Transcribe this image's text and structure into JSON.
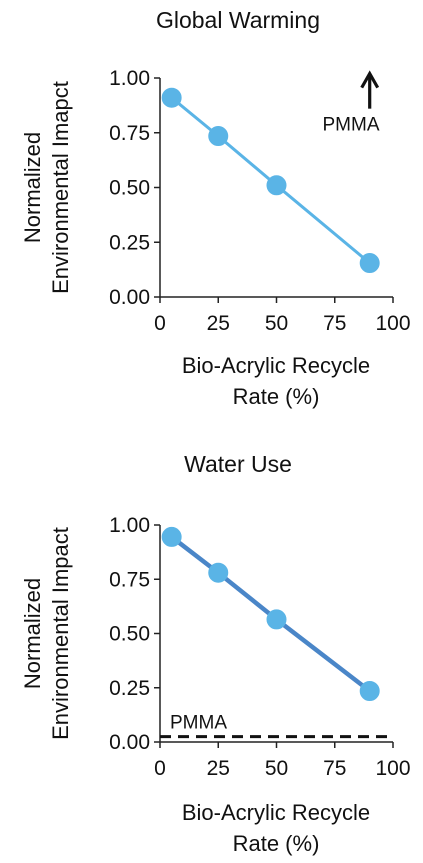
{
  "chart_data": [
    {
      "type": "line",
      "title": "Global Warming",
      "xlabel_lines": [
        "Bio-Acrylic Recycle",
        "Rate (%)"
      ],
      "ylabel_lines": [
        "Normalized",
        "Environmental Imapct"
      ],
      "xlim": [
        0,
        100
      ],
      "ylim": [
        0,
        1
      ],
      "xticks": [
        "0",
        "25",
        "50",
        "75",
        "100"
      ],
      "yticks": [
        "0.00",
        "0.25",
        "0.50",
        "0.75",
        "1.00"
      ],
      "xtick_values": [
        0,
        25,
        50,
        75,
        100
      ],
      "ytick_values": [
        0,
        0.25,
        0.5,
        0.75,
        1.0
      ],
      "grid": false,
      "series": [
        {
          "x": [
            5,
            25,
            50,
            90
          ],
          "y": [
            0.91,
            0.735,
            0.51,
            0.155
          ],
          "color": "#5ab4e6"
        }
      ],
      "reference": {
        "label": "PMMA",
        "kind": "arrow-up",
        "x": 90,
        "y_from": 0.86,
        "y_to": 1.02
      }
    },
    {
      "type": "line",
      "title": "Water Use",
      "xlabel_lines": [
        "Bio-Acrylic Recycle",
        "Rate (%)"
      ],
      "ylabel_lines": [
        "Normalized",
        "Environmental Impact"
      ],
      "xlim": [
        0,
        100
      ],
      "ylim": [
        0,
        1
      ],
      "xticks": [
        "0",
        "25",
        "50",
        "75",
        "100"
      ],
      "yticks": [
        "0.00",
        "0.25",
        "0.50",
        "0.75",
        "1.00"
      ],
      "xtick_values": [
        0,
        25,
        50,
        75,
        100
      ],
      "ytick_values": [
        0,
        0.25,
        0.5,
        0.75,
        1.0
      ],
      "grid": false,
      "series": [
        {
          "x": [
            5,
            25,
            50,
            90
          ],
          "y": [
            0.945,
            0.78,
            0.565,
            0.235
          ],
          "color": "#5ab4e6",
          "line_color": "#4a86c8"
        }
      ],
      "reference": {
        "label": "PMMA",
        "kind": "dashed-line",
        "y": 0.025
      }
    }
  ]
}
